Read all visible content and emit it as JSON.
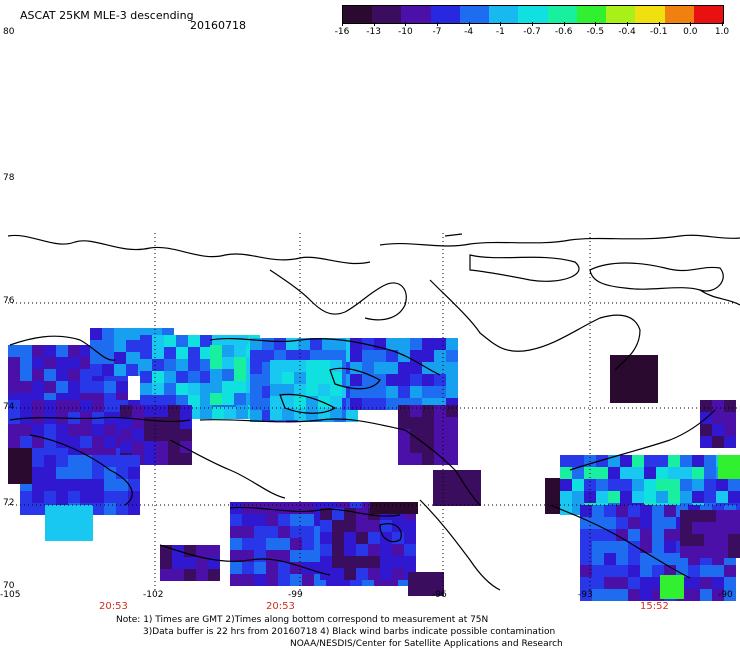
{
  "header": {
    "title": "ASCAT 25KM MLE-3 descending",
    "date": "20160718"
  },
  "colorbar": {
    "labels": [
      "-16",
      "-13",
      "-10",
      "-7",
      "-4",
      "-1",
      "-0.7",
      "-0.6",
      "-0.5",
      "-0.4",
      "-0.1",
      "0.0",
      "1.0"
    ],
    "colors": [
      "#2a0a2e",
      "#3b0d5e",
      "#4a10a8",
      "#2828e0",
      "#1e6cf0",
      "#18b8f0",
      "#10e0e0",
      "#18f0a0",
      "#30f030",
      "#a8f018",
      "#f0e010",
      "#f08010",
      "#e81010"
    ]
  },
  "axes": {
    "lat_labels": [
      "80",
      "78",
      "76",
      "74",
      "72",
      "70"
    ],
    "lon_labels": [
      "-105",
      "-102",
      "-99",
      "-96",
      "-93",
      "-90"
    ],
    "pass_times": [
      "20:53",
      "20:53",
      "15:52"
    ]
  },
  "notes": {
    "line1": "Note: 1) Times are GMT 2)Times along bottom correspond to measurement at 75N",
    "line2": "3)Data buffer is 22 hrs from 20160718 4) Black wind barbs indicate possible contamination",
    "line3": "NOAA/NESDIS/Center for Satellite Applications and Research"
  }
}
